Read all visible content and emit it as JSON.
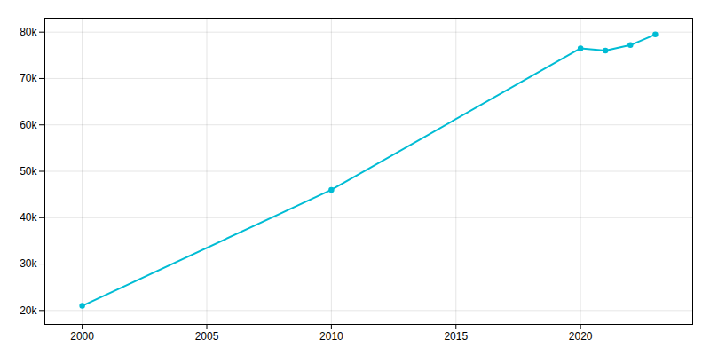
{
  "chart_data": {
    "type": "line",
    "x": [
      2000,
      2010,
      2020,
      2021,
      2022,
      2023
    ],
    "values": [
      21000,
      46000,
      76500,
      76000,
      77200,
      79500
    ],
    "color": "#00BCD4",
    "marker": "circle",
    "xlim": [
      1998.5,
      2024.5
    ],
    "xticks": [
      2000,
      2005,
      2010,
      2015,
      2020
    ],
    "ylim": [
      17000,
      83000
    ],
    "yticks": [
      {
        "value": 20000,
        "label": "20k"
      },
      {
        "value": 30000,
        "label": "30k"
      },
      {
        "value": 40000,
        "label": "40k"
      },
      {
        "value": 50000,
        "label": "50k"
      },
      {
        "value": 60000,
        "label": "60k"
      },
      {
        "value": 70000,
        "label": "70k"
      },
      {
        "value": 80000,
        "label": "80k"
      }
    ],
    "grid": true
  }
}
